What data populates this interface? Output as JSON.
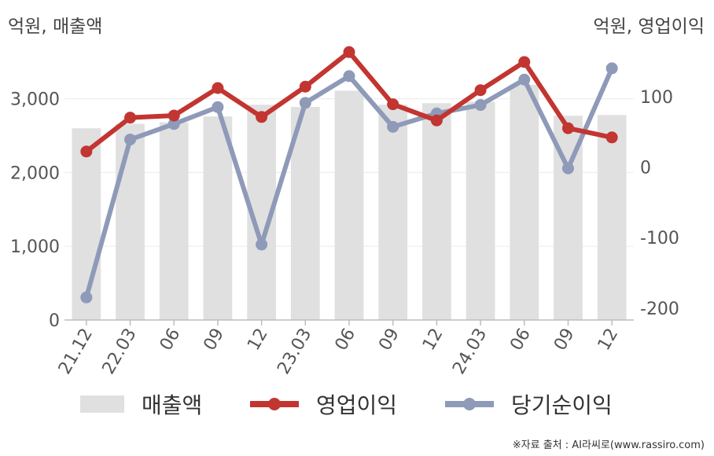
{
  "chart_data": {
    "type": "bar",
    "categories": [
      "21.12",
      "22.03",
      "06",
      "09",
      "12",
      "23.03",
      "06",
      "09",
      "12",
      "24.03",
      "06",
      "09",
      "12"
    ],
    "left_unit": "억원, 매출액",
    "right_unit": "억원, 영업이익",
    "ylim_left": [
      0,
      3700
    ],
    "ylim_right": [
      -217,
      170
    ],
    "left_ticks": [
      0,
      1000,
      2000,
      3000
    ],
    "left_tick_labels": [
      "0",
      "1,000",
      "2,000",
      "3,000"
    ],
    "right_ticks": [
      -200,
      -100,
      0,
      100
    ],
    "right_tick_labels": [
      "-200",
      "-100",
      "0",
      "100"
    ],
    "series": [
      {
        "name": "매출액",
        "kind": "bar",
        "axis": "left",
        "color": "#e0e0e0",
        "values": [
          2600,
          2660,
          2680,
          2760,
          2920,
          2890,
          3110,
          2920,
          2940,
          2960,
          3190,
          2770,
          2780
        ]
      },
      {
        "name": "영업이익",
        "kind": "line",
        "axis": "right",
        "color": "#c23531",
        "values": [
          22,
          70,
          73,
          112,
          71,
          114,
          163,
          89,
          66,
          109,
          149,
          55,
          42
        ]
      },
      {
        "name": "당기순이익",
        "kind": "line",
        "axis": "right",
        "color": "#8e9ab8",
        "values": [
          -185,
          39,
          61,
          85,
          -110,
          91,
          129,
          57,
          76,
          88,
          124,
          -2,
          140
        ]
      }
    ],
    "grid": true,
    "legend_position": "bottom"
  },
  "source": "※자료 출처 : AI라씨로(www.rassiro.com)"
}
